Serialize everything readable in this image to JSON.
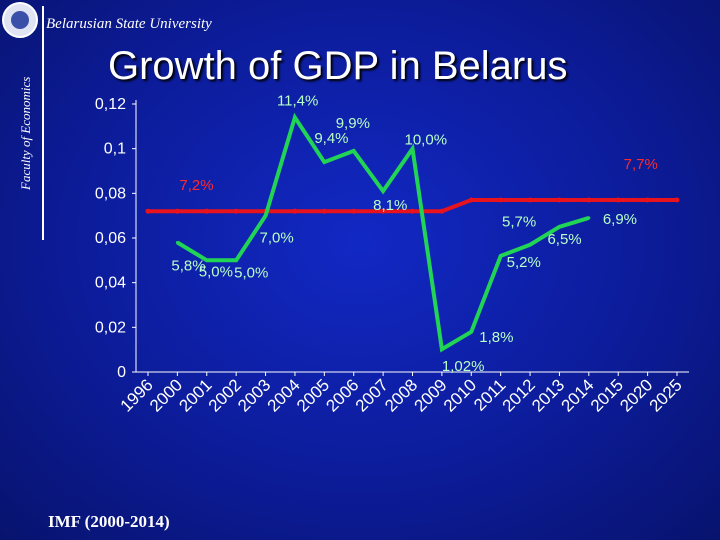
{
  "header": {
    "university": "Belarusian State University",
    "faculty": "Faculty of Economics",
    "title": "Growth of GDP in Belarus"
  },
  "footer": {
    "source": "IMF (2000-2014)"
  },
  "colors": {
    "background": "#0c1a8c",
    "series_actual": "#22d455",
    "series_trend": "#e8131d",
    "actual_label": "#b8ffc8",
    "trend_label": "#ff2a2a",
    "axis_text": "#ffffff"
  },
  "chart_data": {
    "type": "line",
    "x": [
      "1996",
      "2000",
      "2001",
      "2002",
      "2003",
      "2004",
      "2005",
      "2006",
      "2007",
      "2008",
      "2009",
      "2010",
      "2011",
      "2012",
      "2013",
      "2014",
      "2015",
      "2020",
      "2025"
    ],
    "ylim": [
      0,
      0.12
    ],
    "yticks": [
      "0",
      "0,02",
      "0,04",
      "0,06",
      "0,08",
      "0,1",
      "0,12"
    ],
    "grid": false,
    "series": [
      {
        "values": [
          null,
          0.058,
          0.05,
          0.05,
          0.07,
          0.114,
          0.094,
          0.099,
          0.081,
          0.1,
          0.0102,
          0.018,
          0.052,
          0.057,
          0.065,
          0.069,
          null,
          null,
          null
        ]
      },
      {
        "values": [
          0.072,
          0.072,
          0.072,
          0.072,
          0.072,
          0.072,
          0.072,
          0.072,
          0.072,
          0.072,
          0.072,
          0.077,
          0.077,
          0.077,
          0.077,
          0.077,
          0.077,
          0.077,
          0.077
        ]
      }
    ],
    "annotations": [
      {
        "text": "5,8%",
        "series": "actual",
        "x": "2000"
      },
      {
        "text": "5,0%",
        "series": "actual",
        "x": "2001"
      },
      {
        "text": "5,0%",
        "series": "actual",
        "x": "2002"
      },
      {
        "text": "7,0%",
        "series": "actual",
        "x": "2003"
      },
      {
        "text": "11,4%",
        "series": "actual",
        "x": "2004"
      },
      {
        "text": "9,4%",
        "series": "actual",
        "x": "2005"
      },
      {
        "text": "9,9%",
        "series": "actual",
        "x": "2006"
      },
      {
        "text": "8,1%",
        "series": "actual",
        "x": "2007"
      },
      {
        "text": "10,0%",
        "series": "actual",
        "x": "2008"
      },
      {
        "text": "1,02%",
        "series": "actual",
        "x": "2009"
      },
      {
        "text": "1,8%",
        "series": "actual",
        "x": "2010"
      },
      {
        "text": "5,2%",
        "series": "actual",
        "x": "2011"
      },
      {
        "text": "5,7%",
        "series": "actual",
        "x": "2012"
      },
      {
        "text": "6,5%",
        "series": "actual",
        "x": "2013"
      },
      {
        "text": "6,9%",
        "series": "actual",
        "x": "2014"
      },
      {
        "text": "7,2%",
        "series": "trend",
        "x": "2000"
      },
      {
        "text": "7,7%",
        "series": "trend",
        "x": "2020"
      }
    ]
  }
}
